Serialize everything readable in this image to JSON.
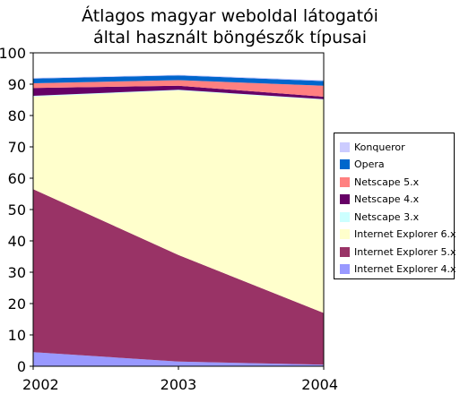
{
  "title_line1": "Átlagos magyar weboldal látogatói",
  "title_line2": "által használt böngészők típusai",
  "chart_data": {
    "type": "area",
    "stacked": true,
    "title": "Átlagos magyar weboldal látogatói által használt böngészők típusai",
    "x": [
      "2002",
      "2003",
      "2004"
    ],
    "xlabel": "",
    "ylabel": "",
    "ylim": [
      0,
      100
    ],
    "yticks": [
      0,
      10,
      20,
      30,
      40,
      50,
      60,
      70,
      80,
      90,
      100
    ],
    "grid": false,
    "legend_position": "right",
    "series": [
      {
        "name": "Internet Explorer 4.x",
        "color": "#9999ff",
        "values": [
          4.5,
          1.5,
          0.5
        ]
      },
      {
        "name": "Internet Explorer 5.x",
        "color": "#993366",
        "values": [
          52.0,
          34.0,
          16.5
        ]
      },
      {
        "name": "Internet Explorer 6.x",
        "color": "#ffffcc",
        "values": [
          29.5,
          52.5,
          68.0
        ]
      },
      {
        "name": "Netscape 3.x",
        "color": "#ccffff",
        "values": [
          0.3,
          0.2,
          0.2
        ]
      },
      {
        "name": "Netscape 4.x",
        "color": "#660066",
        "values": [
          2.5,
          1.3,
          0.8
        ]
      },
      {
        "name": "Netscape 5.x",
        "color": "#ff8080",
        "values": [
          1.5,
          1.8,
          3.5
        ]
      },
      {
        "name": "Opera",
        "color": "#0066cc",
        "values": [
          1.5,
          1.5,
          1.5
        ]
      },
      {
        "name": "Konqueror",
        "color": "#ccccff",
        "values": [
          0.2,
          0.2,
          0.3
        ]
      }
    ]
  }
}
